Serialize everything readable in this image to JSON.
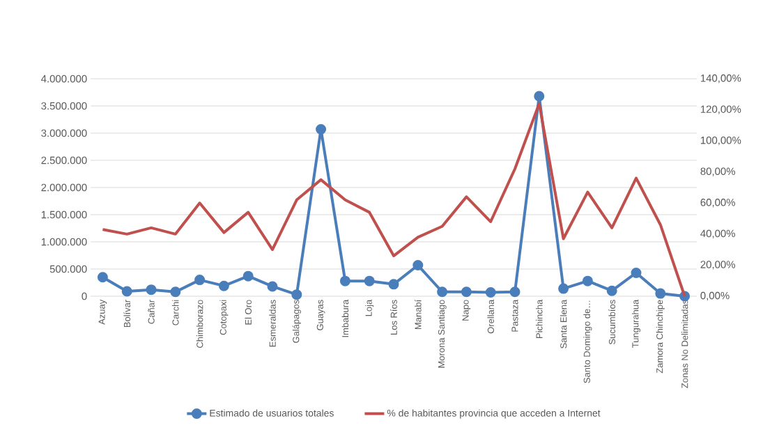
{
  "chart_data": {
    "type": "line",
    "categories": [
      "Azuay",
      "Bolívar",
      "Cañar",
      "Carchi",
      "Chimborazo",
      "Cotopaxi",
      "El Oro",
      "Esmeraldas",
      "Galápagos",
      "Guayas",
      "Imbabura",
      "Loja",
      "Los Ríos",
      "Manabí",
      "Morona Santiago",
      "Napo",
      "Orellana",
      "Pastaza",
      "Pichincha",
      "Santa Elena",
      "Santo Domingo de…",
      "Sucumbíos",
      "Tungurahua",
      "Zamora Chinchipe",
      "Zonas No Delimitadas"
    ],
    "series": [
      {
        "name": "Estimado de usuarios totales",
        "color": "#4a7ebb",
        "marker": "circle",
        "values": [
          350000,
          90000,
          120000,
          80000,
          300000,
          190000,
          370000,
          180000,
          30000,
          3070000,
          280000,
          280000,
          220000,
          570000,
          80000,
          80000,
          70000,
          80000,
          3680000,
          140000,
          280000,
          100000,
          430000,
          50000,
          0
        ]
      },
      {
        "name": "% de habitantes provincia que acceden a Internet",
        "color": "#c0504d",
        "marker": "none",
        "axis": "y2",
        "values": [
          43,
          40,
          44,
          40,
          60,
          41,
          54,
          30,
          62,
          75,
          62,
          54,
          26,
          38,
          45,
          64,
          48,
          82,
          124,
          37,
          67,
          44,
          76,
          46,
          0
        ]
      }
    ],
    "ylim": [
      0,
      4000000
    ],
    "yticks": [
      0,
      {
        "value": 500000,
        "label": "500.000"
      },
      {
        "value": 1000000,
        "label": "1.000.000"
      },
      {
        "value": 1500000,
        "label": "1.500.000"
      },
      {
        "value": 2000000,
        "label": "2.000.000"
      },
      {
        "value": 2500000,
        "label": "2.500.000"
      },
      {
        "value": 3000000,
        "label": "3.000.000"
      },
      {
        "value": 3500000,
        "label": "3.500.000"
      },
      {
        "value": 4000000,
        "label": "4.000.000"
      }
    ],
    "y2lim": [
      0,
      140
    ],
    "y2ticks": [
      {
        "value": 0,
        "label": "0,00%"
      },
      {
        "value": 20,
        "label": "20,00%"
      },
      {
        "value": 40,
        "label": "40,00%"
      },
      {
        "value": 60,
        "label": "60,00%"
      },
      {
        "value": 80,
        "label": "80,00%"
      },
      {
        "value": 100,
        "label": "100,00%"
      },
      {
        "value": 120,
        "label": "120,00%"
      },
      {
        "value": 140,
        "label": "140,00%"
      }
    ],
    "grid": "y",
    "legend": "bottom"
  }
}
